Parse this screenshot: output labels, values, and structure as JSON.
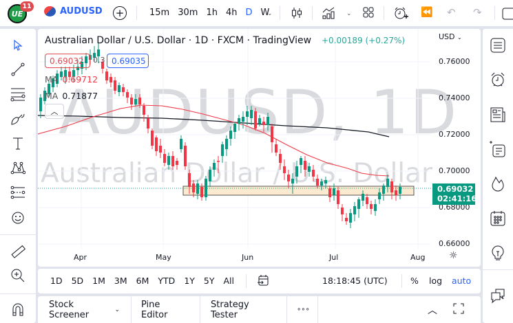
{
  "topbar": {
    "notification_count": "11",
    "logo_text": "UE",
    "symbol": "AUDUSD",
    "intervals": [
      "15m",
      "30m",
      "1h",
      "4h",
      "D",
      "W"
    ],
    "active_interval": "D",
    "icons": [
      "add-symbol-icon",
      "bar-style-icon",
      "indicators-icon",
      "layouts-icon",
      "alert-icon",
      "replay-icon",
      "undo-icon",
      "redo-icon",
      "layout-box-icon"
    ]
  },
  "left_toolbar": {
    "tools": [
      "cursor-icon",
      "trend-line-icon",
      "fib-retracement-icon",
      "brush-icon",
      "text-icon",
      "pattern-icon",
      "prediction-icon",
      "emoji-icon",
      "ruler-icon",
      "zoom-in-icon",
      "magnet-icon"
    ]
  },
  "chart": {
    "title": "Australian Dollar / U.S. Dollar · 1D · FXCM · TradingView",
    "change": "+0.00189 (+0.27%)",
    "currency": "USD",
    "sell_price": "0.69032",
    "spread": "0.3",
    "buy_price": "0.69035",
    "ma1_label": "MA",
    "ma1_value": "0.69712",
    "ma2_label": "MA",
    "ma2_value": "0.71877",
    "watermark_symbol": "AUDUSD, 1D",
    "watermark_name": "Australian Dollar / U.S. Dollar",
    "last_price": "0.69032",
    "countdown": "02:41:16",
    "y_axis": [
      "0.76000",
      "0.74000",
      "0.72000",
      "0.70000",
      "0.68000",
      "0.66000"
    ],
    "x_axis": [
      "Apr",
      "May",
      "Jun",
      "Jul",
      "Aug"
    ],
    "colors": {
      "up": "#089981",
      "down": "#f23645",
      "ma_fast": "#f23645",
      "ma_slow": "#131722",
      "zone": "#fbe9d0",
      "accent": "#2962ff"
    }
  },
  "range_bar": {
    "ranges": [
      "1D",
      "5D",
      "1M",
      "3M",
      "6M",
      "YTD",
      "1Y",
      "5Y",
      "All"
    ],
    "clock": "18:18:45 (UTC)",
    "percent": "%",
    "log": "log",
    "auto": "auto"
  },
  "bottom_bar": {
    "tabs": [
      "Stock Screener",
      "Pine Editor",
      "Strategy Tester"
    ],
    "more": "∘∘∘"
  },
  "right_toolbar": {
    "tools": [
      "watchlist-icon",
      "alerts-icon",
      "news-icon",
      "data-window-icon",
      "hotlist-icon",
      "calendar-icon",
      "ideas-icon",
      "chat-icon"
    ]
  }
}
